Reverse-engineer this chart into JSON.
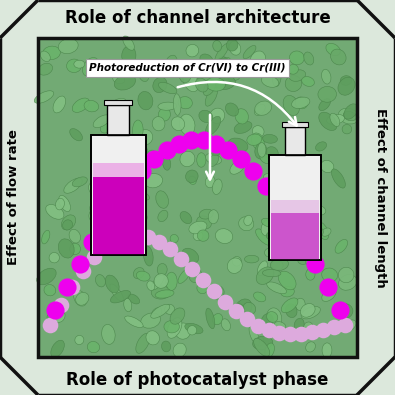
{
  "title_top": "Role of channel architecture",
  "title_bottom": "Role of photocatalyst phase",
  "label_left": "Effect of flow rate",
  "label_right": "Effect of channel length",
  "annotation": "Photoreduction of Cr(VI) to Cr(III)",
  "bg_outer": "#dce8dc",
  "bg_inner_green": "#6aaa70",
  "border_color": "#111111",
  "dot_magenta": "#ee00ee",
  "dot_light": "#ddaadd",
  "fig_size": [
    3.95,
    3.95
  ],
  "dpi": 100
}
